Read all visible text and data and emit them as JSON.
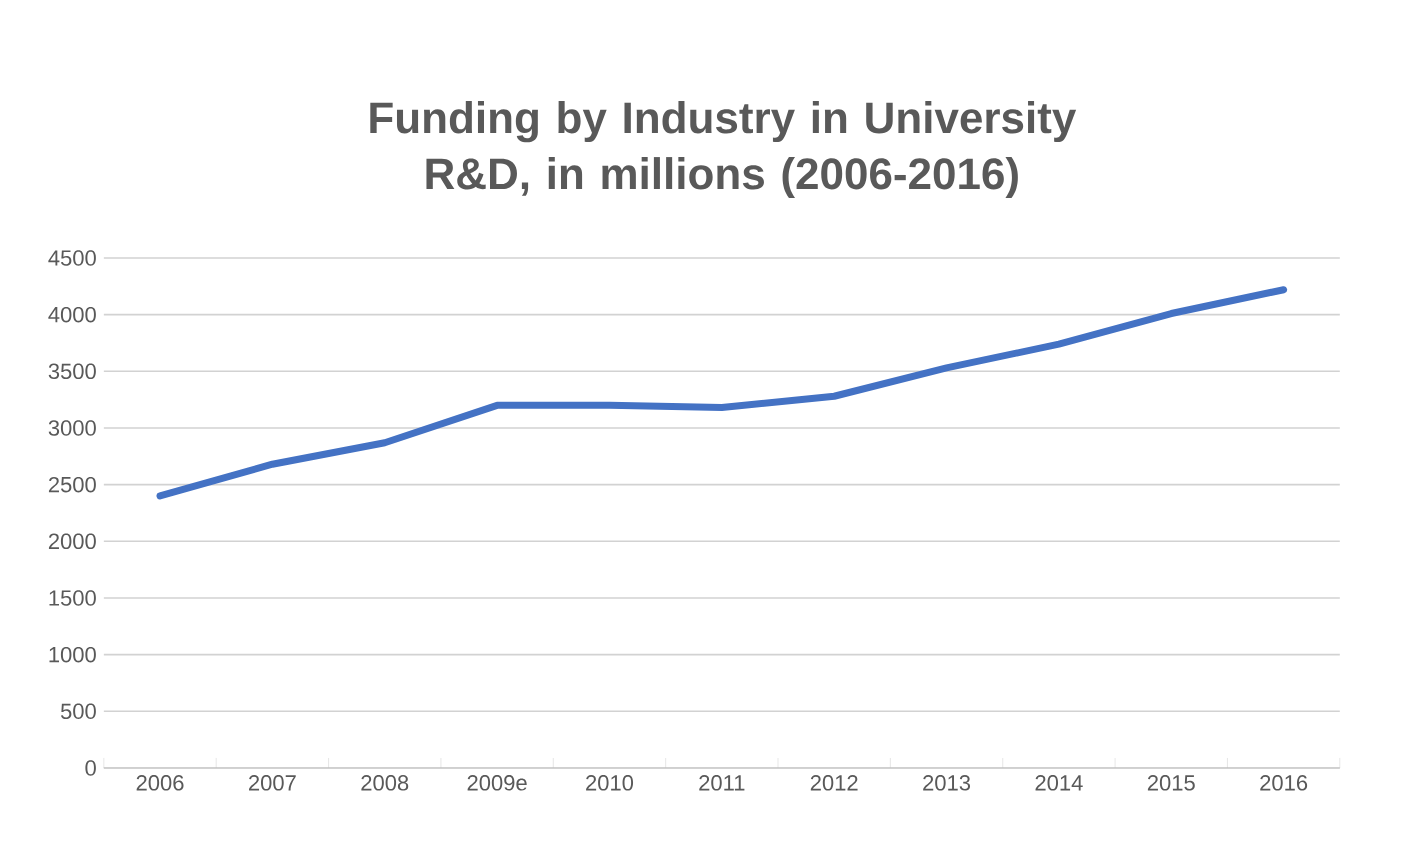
{
  "chart_data": {
    "type": "line",
    "title": "Funding by Industry in University R&D, in millions (2006-2016)",
    "categories": [
      "2006",
      "2007",
      "2008",
      "2009e",
      "2010",
      "2011",
      "2012",
      "2013",
      "2014",
      "2015",
      "2016"
    ],
    "series": [
      {
        "color": "#4472c4",
        "values": [
          2400,
          2680,
          2870,
          3200,
          3200,
          3180,
          3280,
          3530,
          3740,
          4010,
          4220
        ]
      }
    ],
    "ylim": [
      0,
      4500
    ],
    "yticks": [
      0,
      500,
      1000,
      1500,
      2000,
      2500,
      3000,
      3500,
      4000,
      4500
    ],
    "grid": "y",
    "marker": "none",
    "line_style": "solid"
  }
}
